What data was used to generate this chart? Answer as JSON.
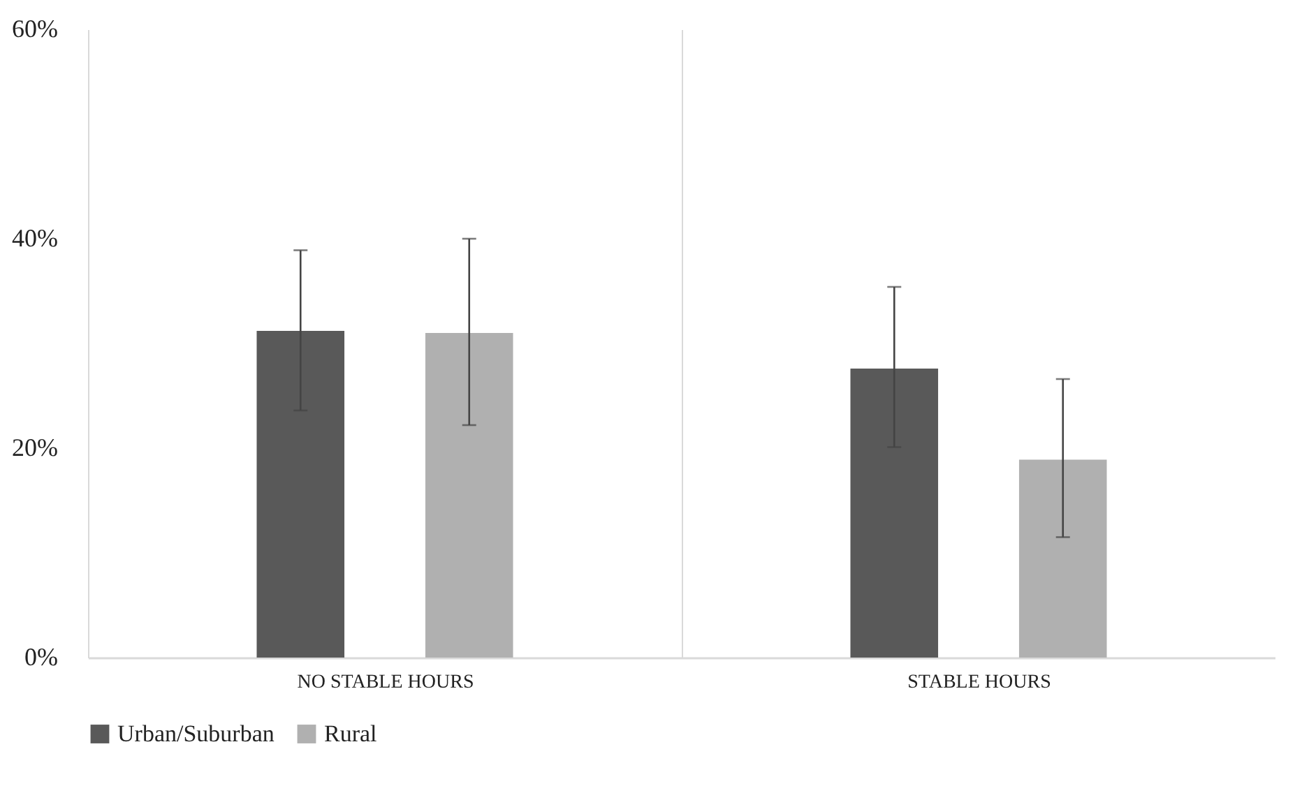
{
  "chart_data": {
    "type": "bar",
    "categories": [
      "NO STABLE HOURS",
      "STABLE HOURS"
    ],
    "series": [
      {
        "name": "Urban/Suburban",
        "color": "#595959",
        "values": [
          31.2,
          27.6
        ],
        "errors": [
          [
            23.6,
            38.9
          ],
          [
            20.1,
            35.4
          ]
        ]
      },
      {
        "name": "Rural",
        "color": "#b0b0b0",
        "values": [
          31,
          18.9
        ],
        "errors": [
          [
            22.2,
            40
          ],
          [
            11.5,
            26.6
          ]
        ]
      }
    ],
    "ylim": [
      0,
      60
    ],
    "yticks": [
      {
        "value": 0,
        "label": "0%"
      },
      {
        "value": 20,
        "label": "20%"
      },
      {
        "value": 40,
        "label": "40%"
      },
      {
        "value": 60,
        "label": "60%"
      }
    ],
    "legend": "bottom"
  }
}
